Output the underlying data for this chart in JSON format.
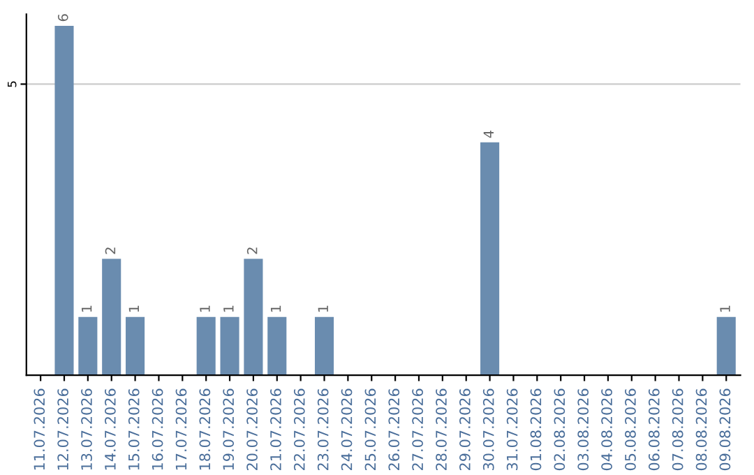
{
  "chart_data": {
    "type": "bar",
    "categories": [
      "11.07.2026",
      "12.07.2026",
      "13.07.2026",
      "14.07.2026",
      "15.07.2026",
      "16.07.2026",
      "17.07.2026",
      "18.07.2026",
      "19.07.2026",
      "20.07.2026",
      "21.07.2026",
      "22.07.2026",
      "23.07.2026",
      "24.07.2026",
      "25.07.2026",
      "26.07.2026",
      "27.07.2026",
      "28.07.2026",
      "29.07.2026",
      "30.07.2026",
      "31.07.2026",
      "01.08.2026",
      "02.08.2026",
      "03.08.2026",
      "04.08.2026",
      "05.08.2026",
      "06.08.2026",
      "07.08.2026",
      "08.08.2026",
      "09.08.2026"
    ],
    "values": [
      0,
      6,
      1,
      2,
      1,
      0,
      0,
      1,
      1,
      2,
      1,
      0,
      1,
      0,
      0,
      0,
      0,
      0,
      0,
      4,
      0,
      0,
      0,
      0,
      0,
      0,
      0,
      0,
      0,
      1
    ],
    "value_labels": [
      null,
      "6",
      "1",
      "2",
      "1",
      null,
      null,
      "1",
      "1",
      "2",
      "1",
      null,
      "1",
      null,
      null,
      null,
      null,
      null,
      null,
      "4",
      null,
      null,
      null,
      null,
      null,
      null,
      null,
      null,
      null,
      "1"
    ],
    "color": "#6a8caf",
    "ylim": [
      0,
      6.2
    ],
    "yticks": [
      5
    ],
    "grid": "y",
    "legend": false
  }
}
